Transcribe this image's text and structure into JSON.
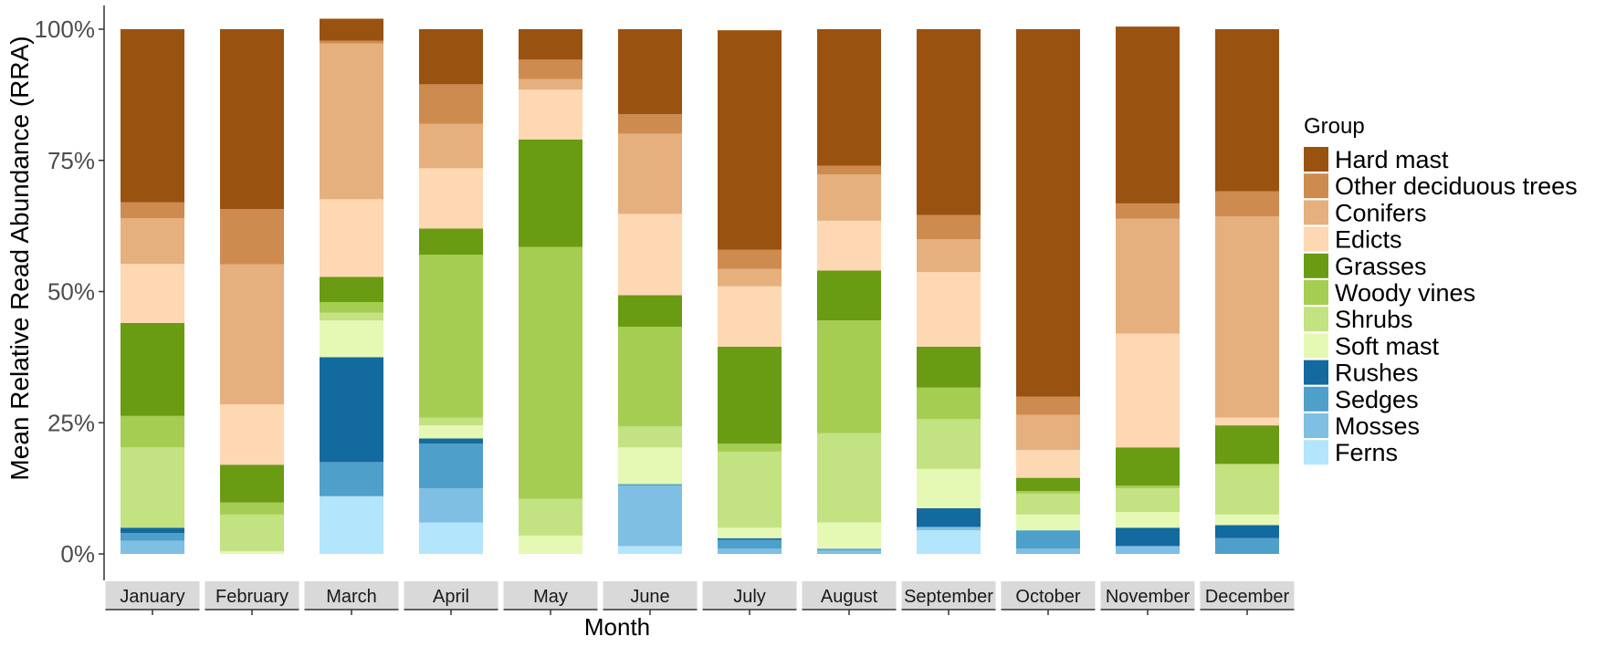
{
  "chart_data": {
    "type": "bar",
    "stacked": true,
    "percent": true,
    "xlabel": "Month",
    "ylabel": "Mean Relative Read Abundance (RRA)",
    "ylim": [
      0,
      100
    ],
    "yticks": [
      "0%",
      "25%",
      "50%",
      "75%",
      "100%"
    ],
    "grid": false,
    "legend_title": "Group",
    "legend_position": "right",
    "categories": [
      "January",
      "February",
      "March",
      "April",
      "May",
      "June",
      "July",
      "August",
      "September",
      "October",
      "November",
      "December"
    ],
    "series": [
      {
        "name": "Ferns",
        "color": "#b3e5fc",
        "values": [
          0,
          0,
          11,
          6,
          0,
          1.5,
          0,
          0,
          4.5,
          0,
          0,
          0
        ]
      },
      {
        "name": "Mosses",
        "color": "#7fbfe3",
        "values": [
          2.5,
          0,
          0,
          6.5,
          0,
          11.5,
          1,
          0.7,
          0.5,
          1,
          1.5,
          0
        ]
      },
      {
        "name": "Sedges",
        "color": "#4f9fcb",
        "values": [
          1.5,
          0,
          6.5,
          8.5,
          0,
          0.3,
          1.7,
          0.3,
          0.2,
          3.5,
          0,
          3
        ]
      },
      {
        "name": "Rushes",
        "color": "#136a9e",
        "values": [
          1,
          0,
          20,
          1,
          0,
          0,
          0.3,
          0,
          3.5,
          0,
          3.5,
          2.5
        ]
      },
      {
        "name": "Soft mast",
        "color": "#e5f9b4",
        "values": [
          0,
          0.5,
          7,
          2.5,
          3.5,
          7,
          2,
          5,
          7.5,
          3,
          3,
          2
        ]
      },
      {
        "name": "Shrubs",
        "color": "#c3e282",
        "values": [
          15.3,
          7,
          1.5,
          1.5,
          7,
          4,
          14.5,
          17,
          9.5,
          4,
          4.5,
          9.5
        ]
      },
      {
        "name": "Woody vines",
        "color": "#a5cd52",
        "values": [
          6,
          2.3,
          2,
          31,
          48,
          19,
          1.5,
          21.5,
          6,
          0.5,
          0.5,
          0.2
        ]
      },
      {
        "name": "Grasses",
        "color": "#699b13",
        "values": [
          17.7,
          7.2,
          4.8,
          5,
          20.5,
          6,
          18.5,
          9.5,
          7.8,
          2.5,
          7.3,
          7.3
        ]
      },
      {
        "name": "Edicts",
        "color": "#fdd8b2",
        "values": [
          11.3,
          11.5,
          14.8,
          11.5,
          9.5,
          15.5,
          11.5,
          9.5,
          14.2,
          5.3,
          21.7,
          1.5
        ]
      },
      {
        "name": "Conifers",
        "color": "#e5b07d",
        "values": [
          8.7,
          26.7,
          29.7,
          8.5,
          2,
          15.3,
          3.3,
          8.8,
          6.3,
          6.7,
          21.9,
          38.3
        ]
      },
      {
        "name": "Other deciduous trees",
        "color": "#cd8b50",
        "values": [
          3,
          10.5,
          0.5,
          7.5,
          3.7,
          3.7,
          3.7,
          1.7,
          4.6,
          3.5,
          2.9,
          4.8
        ]
      },
      {
        "name": "Hard mast",
        "color": "#9a5210",
        "values": [
          33,
          34.3,
          4.2,
          10.5,
          5.8,
          16.2,
          41.8,
          26,
          35.4,
          70,
          33.7,
          30.9
        ]
      }
    ]
  }
}
